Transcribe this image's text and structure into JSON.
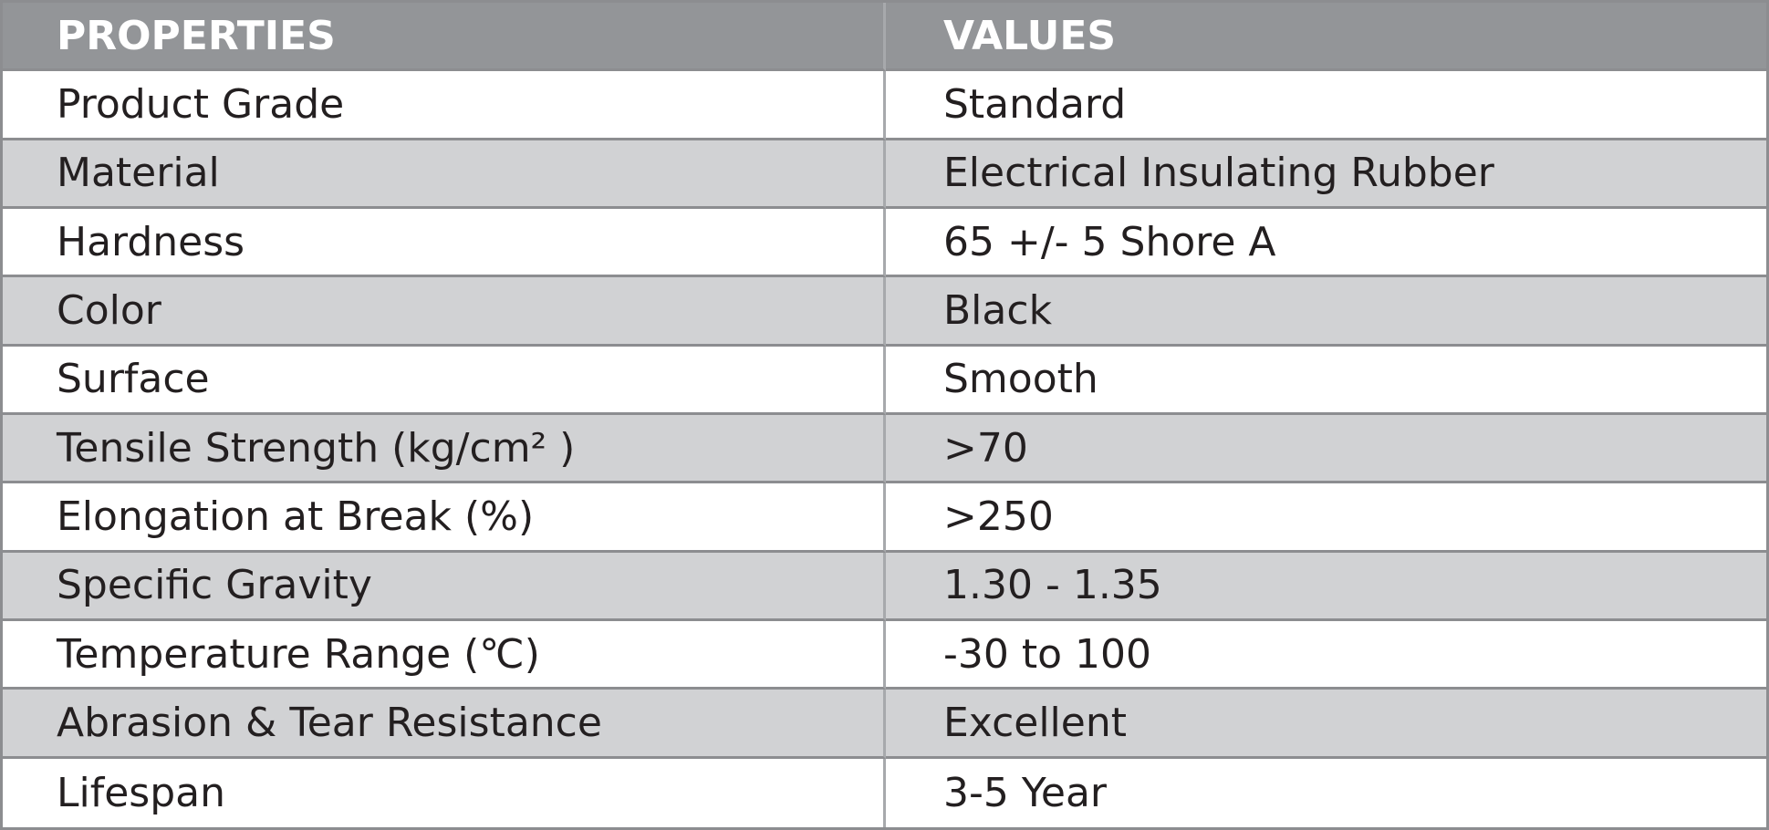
{
  "table": {
    "header": [
      "PROPERTIES",
      "VALUES"
    ],
    "rows": [
      [
        "Product Grade",
        "Standard"
      ],
      [
        "Material",
        "Electrical Insulating Rubber"
      ],
      [
        "Hardness",
        "65 +/- 5 Shore A"
      ],
      [
        "Color",
        "Black"
      ],
      [
        "Surface",
        "Smooth"
      ],
      [
        "Tensile Strength (kg/cm² )",
        ">70"
      ],
      [
        "Elongation at Break (%)",
        ">250"
      ],
      [
        "Specific Gravity",
        "1.30 - 1.35"
      ],
      [
        "Temperature Range (℃)",
        "-30 to 100"
      ],
      [
        "Abrasion & Tear Resistance",
        "Excellent"
      ],
      [
        "Lifespan",
        "3-5 Year"
      ]
    ]
  }
}
